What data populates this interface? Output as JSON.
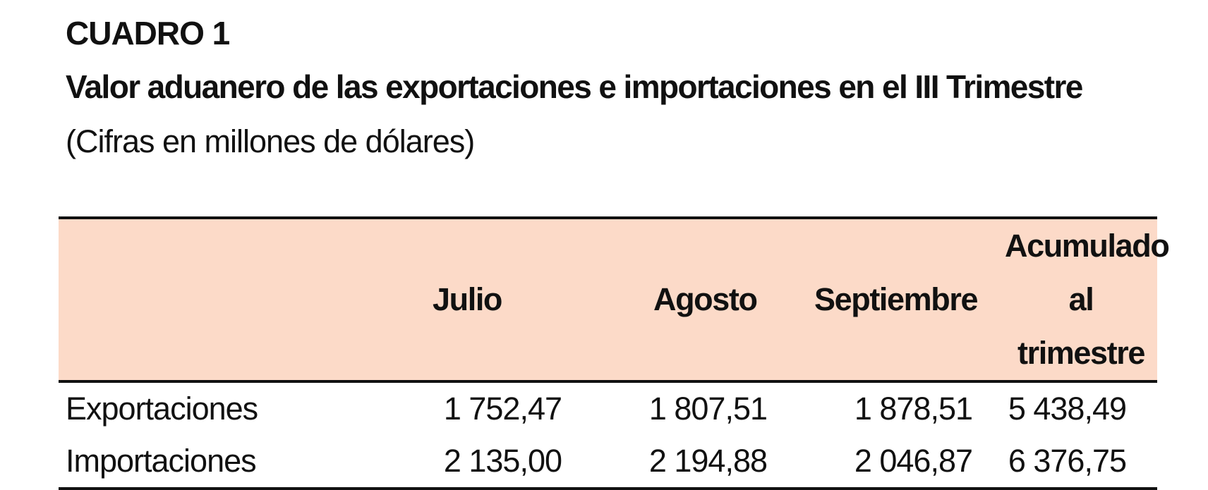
{
  "header": {
    "cuadro": "CUADRO 1",
    "title": "Valor aduanero de las exportaciones e importaciones en el III Trimestre",
    "subtitle": "(Cifras en millones de dólares)"
  },
  "table": {
    "columns": [
      "",
      "Julio",
      "Agosto",
      "Septiembre",
      "Acumulado al trimestre"
    ],
    "acumulado_line1": "Acumulado",
    "acumulado_line2": "al trimestre",
    "rows": [
      {
        "label": "Exportaciones",
        "values": [
          "1 752,47",
          "1 807,51",
          "1 878,51",
          "5 438,49"
        ]
      },
      {
        "label": "Importaciones",
        "values": [
          "2 135,00",
          "2 194,88",
          "2 046,87",
          "6 376,75"
        ]
      }
    ]
  },
  "colors": {
    "header_band": "#fcdac8",
    "text": "#111111",
    "rule": "#111111"
  }
}
